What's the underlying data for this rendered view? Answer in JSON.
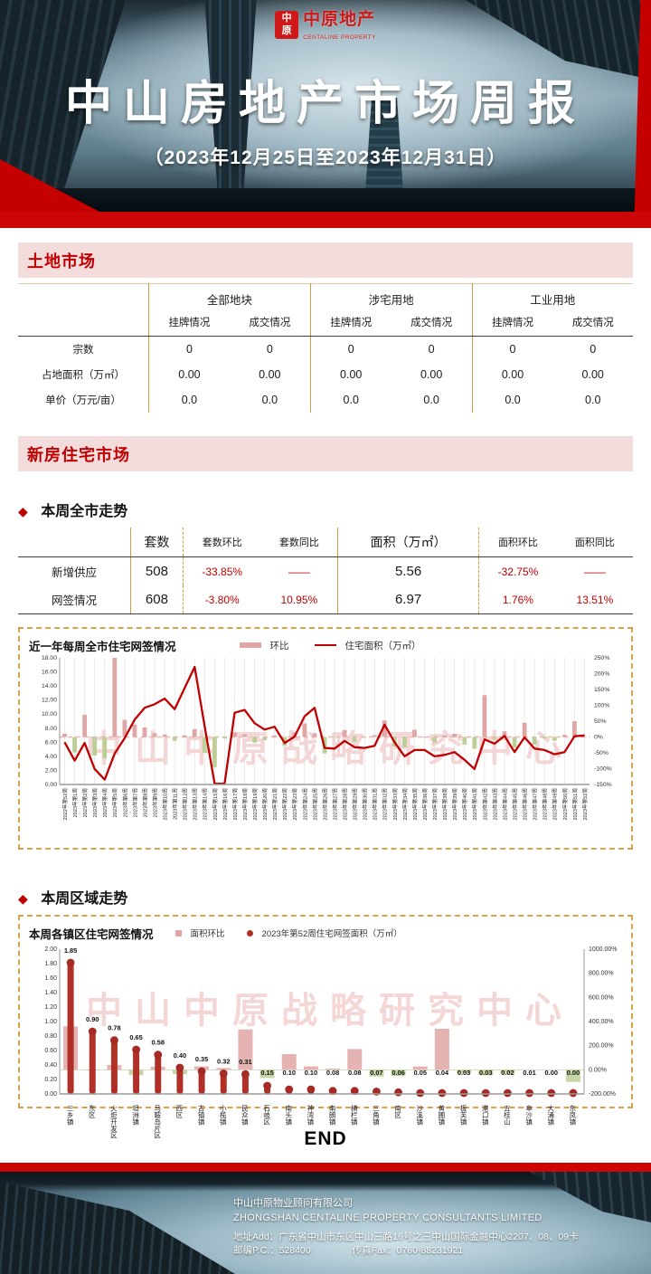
{
  "header": {
    "seal_top": "中",
    "seal_bottom": "原",
    "brand": "中原地产",
    "brand_sub": "CENTALINE PROPERTY",
    "title": "中山房地产市场周报",
    "subtitle": "（2023年12月25日至2023年12月31日）"
  },
  "bullet": "◆",
  "watermark": "中山中原战略研究中心",
  "land_market": {
    "section_title": "土地市场",
    "table": {
      "groups": [
        "全部地块",
        "涉宅用地",
        "工业用地"
      ],
      "subheader_listed": "挂牌情况",
      "subheader_sold": "成交情况",
      "rows": [
        {
          "label": "宗数",
          "values": [
            "0",
            "0",
            "0",
            "0",
            "0",
            "0"
          ]
        },
        {
          "label": "占地面积（万㎡）",
          "values": [
            "0.00",
            "0.00",
            "0.00",
            "0.00",
            "0.00",
            "0.00"
          ]
        },
        {
          "label": "单价（万元/亩）",
          "values": [
            "0.0",
            "0.0",
            "0.0",
            "0.0",
            "0.0",
            "0.0"
          ]
        }
      ]
    }
  },
  "new_housing": {
    "section_title": "新房住宅市场",
    "weekly_title": "本周全市走势",
    "region_title": "本周区域走势",
    "table": {
      "headers": [
        "套数",
        "套数环比",
        "套数同比",
        "面积（万㎡）",
        "面积环比",
        "面积同比"
      ],
      "rows": [
        {
          "label": "新增供应",
          "values": [
            "508",
            "-33.85%",
            "——",
            "5.56",
            "-32.75%",
            "——"
          ]
        },
        {
          "label": "网签情况",
          "values": [
            "608",
            "-3.80%",
            "10.95%",
            "6.97",
            "1.76%",
            "13.51%"
          ]
        }
      ]
    }
  },
  "chart_data": [
    {
      "type": "combo",
      "title": "近一年每周全市住宅网签情况",
      "legend_position": "top",
      "categories": [
        "2022年第52周",
        "2023年第1周",
        "2023年第2周",
        "2023年第3周",
        "2023年第4周",
        "2023年第5周",
        "2023年第6周",
        "2023年第7周",
        "2023年第8周",
        "2023年第9周",
        "2023年第10周",
        "2023年第11周",
        "2023年第12周",
        "2023年第13周",
        "2023年第14周",
        "2023年第15周",
        "2023年第16周",
        "2023年第17周",
        "2023年第18周",
        "2023年第19周",
        "2023年第20周",
        "2023年第21周",
        "2023年第22周",
        "2023年第23周",
        "2023年第24周",
        "2023年第25周",
        "2023年第26周",
        "2023年第27周",
        "2023年第28周",
        "2023年第29周",
        "2023年第30周",
        "2023年第31周",
        "2023年第32周",
        "2023年第33周",
        "2023年第34周",
        "2023年第35周",
        "2023年第36周",
        "2023年第37周",
        "2023年第38周",
        "2023年第39周",
        "2023年第40周",
        "2023年第41周",
        "2023年第42周",
        "2023年第43周",
        "2023年第44周",
        "2023年第45周",
        "2023年第46周",
        "2023年第47周",
        "2023年第48周",
        "2023年第49周",
        "2023年第50周",
        "2023年第51周",
        "2023年第52周"
      ],
      "series": [
        {
          "name": "环比",
          "type": "bar",
          "axis": "right",
          "unit": "%",
          "values": [
            10,
            -49,
            70,
            -59,
            -68,
            250,
            54,
            39,
            30,
            12,
            8,
            -12,
            5,
            25,
            -50,
            -95,
            -5,
            15,
            8,
            -18,
            -10,
            5,
            -28,
            15,
            43,
            12,
            -52,
            -2,
            22,
            -15,
            -2,
            6,
            52,
            -30,
            -33,
            23,
            0,
            -18,
            5,
            10,
            -24,
            -37,
            132,
            -8,
            18,
            -33,
            45,
            -24,
            -5,
            -12,
            7,
            50,
            2
          ]
        },
        {
          "name": "住宅面积（万㎡）",
          "type": "line",
          "axis": "left",
          "values": [
            6.0,
            3.4,
            5.9,
            2.2,
            0.7,
            4.4,
            6.6,
            9.2,
            10.9,
            11.4,
            12.2,
            10.7,
            13.7,
            16.7,
            8.3,
            0.1,
            0.1,
            10.2,
            10.6,
            8.7,
            7.8,
            8.2,
            5.9,
            6.8,
            9.7,
            10.9,
            5.2,
            5.1,
            6.2,
            5.3,
            5.2,
            5.5,
            8.5,
            6.0,
            4.0,
            4.9,
            4.9,
            4.0,
            4.2,
            4.6,
            3.5,
            2.2,
            6.4,
            5.8,
            6.9,
            4.6,
            6.7,
            5.1,
            4.9,
            4.3,
            4.6,
            6.85,
            6.97
          ]
        }
      ],
      "left_axis": {
        "min": 0,
        "max": 18,
        "ticks": [
          "18.00",
          "16.00",
          "14.00",
          "12.00",
          "10.00",
          "8.00",
          "6.00",
          "4.00",
          "2.00",
          "0.00"
        ]
      },
      "right_axis": {
        "min": -150,
        "max": 250,
        "ticks": [
          "250%",
          "200%",
          "150%",
          "100%",
          "50%",
          "0%",
          "-50%",
          "-100%",
          "-150%"
        ]
      },
      "grid": "vertical"
    },
    {
      "type": "combo",
      "title": "本周各镇区住宅网签情况",
      "legend_position": "top",
      "categories": [
        "三乡镇",
        "东区",
        "火炬开发区",
        "坦洲镇",
        "马鞍岛片区",
        "西区",
        "古镇镇",
        "小榄镇",
        "民众镇",
        "石岐区",
        "南头镇",
        "神湾镇",
        "南朗镇",
        "横栏镇",
        "三角镇",
        "南区",
        "沙溪镇",
        "黄圃镇",
        "板芙镇",
        "港口镇",
        "五桂山",
        "阜沙镇",
        "大涌镇",
        "东凤镇"
      ],
      "series": [
        {
          "name": "面积环比",
          "type": "bar",
          "axis": "right",
          "unit": "%",
          "values": [
            360,
            -5,
            40,
            -45,
            25,
            -35,
            28,
            15,
            335,
            -68,
            130,
            28,
            10,
            172,
            -56,
            -50,
            28,
            340,
            -30,
            -45,
            -32,
            0,
            0,
            -100
          ]
        },
        {
          "name": "2023年第52周住宅网签面积（万㎡）",
          "type": "lollipop",
          "axis": "left",
          "values": [
            1.85,
            0.9,
            0.78,
            0.65,
            0.58,
            0.4,
            0.35,
            0.32,
            0.31,
            0.15,
            0.1,
            0.1,
            0.08,
            0.08,
            0.07,
            0.06,
            0.05,
            0.04,
            0.03,
            0.03,
            0.02,
            0.01,
            0.0,
            0.0
          ],
          "labels": [
            "1.85",
            "0.90",
            "0.78",
            "0.65",
            "0.58",
            "0.40",
            "0.35",
            "0.32",
            "0.31",
            "0.15",
            "0.10",
            "0.10",
            "0.08",
            "0.08",
            "0.07",
            "0.06",
            "0.05",
            "0.04",
            "0.03",
            "0.03",
            "0.02",
            "0.01",
            "0.00",
            "0.00"
          ]
        }
      ],
      "left_axis": {
        "min": 0,
        "max": 2,
        "ticks": [
          "2.00",
          "1.80",
          "1.60",
          "1.40",
          "1.20",
          "1.00",
          "0.80",
          "0.60",
          "0.40",
          "0.20",
          "0.00"
        ]
      },
      "right_axis": {
        "min": -200,
        "max": 1000,
        "ticks": [
          "1000.00%",
          "800.00%",
          "600.00%",
          "400.00%",
          "200.00%",
          "0.00%",
          "-200.00%"
        ]
      },
      "grid": "none"
    }
  ],
  "end_label": "END",
  "footer": {
    "company_cn": "中山中原物业顾问有限公司",
    "company_en": "ZHONGSHAN CENTALINE PROPERTY CONSULTANTS LIMITED",
    "address": "地址Add：广东省中山市东区中山三路16号之三中山国际金融中心2207、08、09卡",
    "postcode": "邮编P.C.：528400",
    "fax": "传真Fax：0760-88231921"
  },
  "colors": {
    "accent_red": "#c00000",
    "bright_red": "#cc0505",
    "bar_pink": "#dfa6a5",
    "bar_green": "#bccf96",
    "lollipop_red": "#b03028",
    "table_line_tan": "#d19c3f",
    "section_bg": "#f2dddc",
    "watermark_pink": "#db6a6a"
  }
}
